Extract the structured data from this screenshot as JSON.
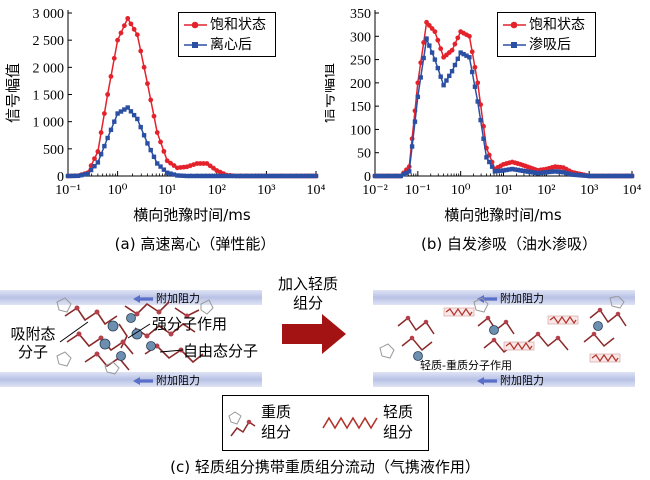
{
  "chart_data": [
    {
      "type": "line",
      "xscale": "log",
      "xlim": [
        0.1,
        10000
      ],
      "ylim": [
        0,
        3000
      ],
      "yticks": [
        "0",
        "500",
        "1 000",
        "1 500",
        "2 000",
        "2 500",
        "3 000"
      ],
      "xticks": [
        "10⁻¹",
        "10⁰",
        "10¹",
        "10²",
        "10³",
        "10⁴"
      ],
      "xlabel": "横向弛豫时间/ms",
      "ylabel": "信号幅值",
      "caption": "(a) 高速离心（弹性能）",
      "legend_position": "top-right",
      "series": [
        {
          "name": "饱和状态",
          "color": "#e3222c",
          "marker": "circle",
          "x": [
            0.1,
            0.16,
            0.25,
            0.4,
            0.63,
            1,
            1.6,
            2.5,
            4,
            6.3,
            10,
            16,
            25,
            40,
            63,
            100,
            160,
            250,
            1000,
            10000
          ],
          "y": [
            0,
            5,
            60,
            450,
            1500,
            2500,
            2900,
            2600,
            1700,
            800,
            280,
            150,
            170,
            230,
            230,
            100,
            15,
            0,
            0,
            0
          ]
        },
        {
          "name": "离心后",
          "color": "#2b4fa3",
          "marker": "square",
          "x": [
            0.1,
            0.16,
            0.25,
            0.4,
            0.63,
            1,
            1.6,
            2.5,
            4,
            6.3,
            10,
            16,
            25,
            40,
            100,
            1000,
            10000
          ],
          "y": [
            0,
            3,
            40,
            250,
            700,
            1150,
            1260,
            1050,
            600,
            230,
            60,
            10,
            0,
            0,
            0,
            0,
            0
          ]
        }
      ]
    },
    {
      "type": "line",
      "xscale": "log",
      "xlim": [
        0.01,
        10000
      ],
      "ylim": [
        0,
        350
      ],
      "yticks": [
        "0",
        "50",
        "100",
        "150",
        "200",
        "250",
        "300",
        "350"
      ],
      "xticks": [
        "10⁻²",
        "10⁻¹",
        "10⁰",
        "10¹",
        "10²",
        "10³",
        "10⁴"
      ],
      "xlabel": "横向弛豫时间/ms",
      "ylabel": "信号幅值",
      "caption": "(b) 自发渗吸（油水渗吸）",
      "legend_position": "top-right",
      "series": [
        {
          "name": "饱和状态",
          "color": "#e3222c",
          "marker": "circle",
          "x": [
            0.01,
            0.04,
            0.063,
            0.1,
            0.16,
            0.25,
            0.4,
            0.63,
            1,
            1.6,
            2.5,
            4,
            6.3,
            10,
            16,
            25,
            63,
            100,
            160,
            250,
            400,
            1000,
            10000
          ],
          "y": [
            0,
            0,
            20,
            200,
            330,
            310,
            255,
            270,
            310,
            300,
            200,
            60,
            15,
            25,
            30,
            25,
            12,
            15,
            20,
            18,
            8,
            0,
            0
          ]
        },
        {
          "name": "渗吸后",
          "color": "#2b4fa3",
          "marker": "square",
          "x": [
            0.01,
            0.04,
            0.063,
            0.1,
            0.16,
            0.25,
            0.4,
            0.63,
            1,
            1.6,
            2.5,
            4,
            6.3,
            10,
            16,
            25,
            63,
            100,
            160,
            250,
            400,
            1000,
            10000
          ],
          "y": [
            0,
            0,
            10,
            170,
            295,
            250,
            195,
            225,
            265,
            255,
            160,
            40,
            10,
            12,
            15,
            12,
            6,
            8,
            10,
            8,
            3,
            0,
            0
          ]
        }
      ]
    }
  ],
  "diagram": {
    "barrier_label": "附加阻力",
    "left": {
      "adsorbed_label_line1": "吸附态",
      "adsorbed_label_line2": "分子",
      "strong_label": "强分子作用",
      "free_label": "自由态分子"
    },
    "arrow_label_line1": "加入轻质",
    "arrow_label_line2": "组分",
    "right": {
      "interaction_label": "轻质-重质分子作用"
    },
    "legend": {
      "heavy_line1": "重质",
      "heavy_line2": "组分",
      "light_line1": "轻质",
      "light_line2": "组分"
    },
    "caption": "(c) 轻质组分携带重质组分流动（气携液作用）",
    "colors": {
      "heavy": "#8a2a2a",
      "light": "#b2342b",
      "barrier": "#c7cdeb",
      "arrow": "#a31313"
    }
  }
}
